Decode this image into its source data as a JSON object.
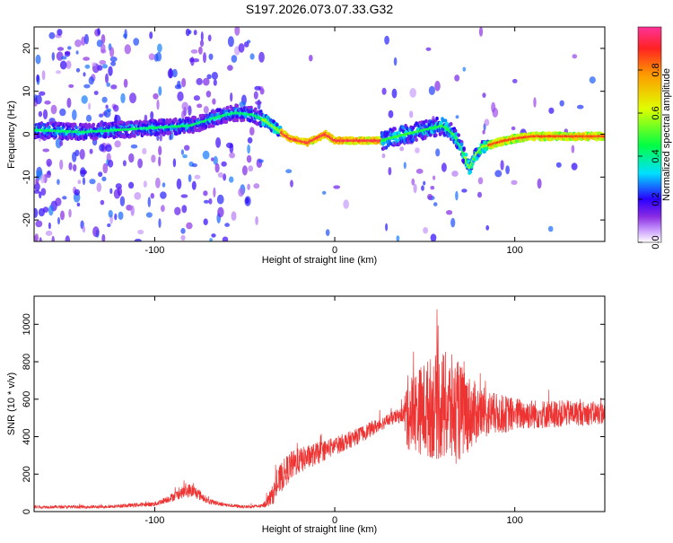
{
  "figure_title": "S197.2026.073.07.33.G32",
  "colors": {
    "snr_line": "#ee3333",
    "frame": "#000000",
    "background": "#ffffff"
  },
  "chart_data": [
    {
      "type": "heatmap",
      "name": "spectrogram",
      "title": "",
      "xlabel": "Height of straight line (km)",
      "ylabel": "Frequency (Hz)",
      "xlim": [
        -167,
        150
      ],
      "ylim": [
        -25,
        25
      ],
      "xticks": [
        -100,
        0,
        100
      ],
      "xtick_labels": [
        "-100",
        "0",
        "100"
      ],
      "yticks": [
        -20,
        -10,
        0,
        10,
        20
      ],
      "ytick_labels": [
        "-20",
        "-10",
        "0",
        "10",
        "20"
      ],
      "colormap": "rainbow",
      "colorbar": {
        "label": "Normalized spectral amplitude",
        "range": [
          0,
          1
        ],
        "ticks": [
          0.0,
          0.2,
          0.4,
          0.6,
          0.8
        ],
        "tick_labels": [
          "0.0",
          "0.2",
          "0.4",
          "0.6",
          "0.8"
        ]
      },
      "ridge": {
        "description": "dominant frequency track (Hz) vs height (km)",
        "x": [
          -167,
          -140,
          -120,
          -100,
          -80,
          -65,
          -55,
          -45,
          -38,
          -30,
          -25,
          -20,
          -15,
          -10,
          -5,
          0,
          10,
          20,
          26,
          30,
          40,
          50,
          60,
          66,
          70,
          73,
          75,
          78,
          82,
          90,
          100,
          110,
          120,
          130,
          140,
          150
        ],
        "y": [
          1,
          0.5,
          1,
          1.5,
          2,
          4,
          5,
          4.5,
          3,
          0.5,
          -1,
          -1.5,
          -2,
          -1,
          0,
          -1.5,
          -1.5,
          -1.5,
          -1.5,
          -1,
          0,
          1,
          2,
          0,
          -3,
          -6,
          -8,
          -5,
          -3,
          -2,
          -1,
          -0.5,
          -0.5,
          -0.5,
          -0.5,
          -0.5
        ]
      }
    },
    {
      "type": "line",
      "name": "snr",
      "title": "",
      "xlabel": "Height of straight line (km)",
      "ylabel": "SNR (10 * v/v)",
      "xlim": [
        -167,
        150
      ],
      "ylim": [
        0,
        1150
      ],
      "xticks": [
        -100,
        0,
        100
      ],
      "xtick_labels": [
        "-100",
        "0",
        "100"
      ],
      "yticks": [
        0,
        200,
        400,
        600,
        800,
        1000
      ],
      "ytick_labels": [
        "0",
        "200",
        "400",
        "600",
        "800",
        "1000"
      ],
      "series": [
        {
          "name": "SNR",
          "envelope_x": [
            -167,
            -130,
            -100,
            -92,
            -85,
            -80,
            -76,
            -70,
            -60,
            -50,
            -40,
            -35,
            -30,
            -25,
            -20,
            -10,
            0,
            10,
            20,
            30,
            38,
            40,
            45,
            50,
            55,
            60,
            65,
            70,
            75,
            80,
            90,
            100,
            110,
            120,
            130,
            140,
            150
          ],
          "envelope_mean": [
            25,
            25,
            40,
            70,
            100,
            115,
            95,
            55,
            35,
            25,
            30,
            80,
            180,
            240,
            270,
            310,
            350,
            390,
            440,
            490,
            520,
            525,
            540,
            545,
            560,
            560,
            540,
            530,
            525,
            525,
            520,
            520,
            520,
            520,
            525,
            525,
            525
          ],
          "envelope_spread": [
            8,
            8,
            12,
            20,
            30,
            40,
            30,
            15,
            10,
            8,
            10,
            50,
            80,
            80,
            70,
            60,
            50,
            45,
            40,
            35,
            40,
            200,
            220,
            260,
            280,
            300,
            300,
            260,
            200,
            150,
            110,
            90,
            80,
            75,
            70,
            65,
            60
          ]
        }
      ]
    }
  ]
}
